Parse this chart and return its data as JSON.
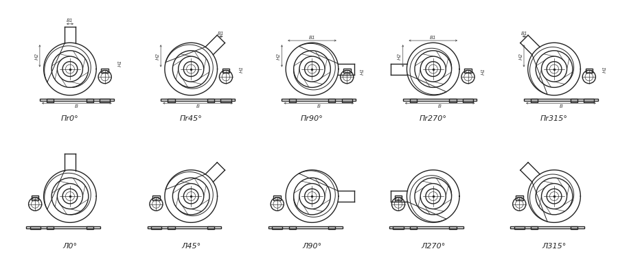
{
  "background_color": "#ffffff",
  "line_color": "#222222",
  "dim_color": "#444444",
  "row1_labels": [
    "Пr0°",
    "Пr45°",
    "Пr90°",
    "Пr270°",
    "Пr315°"
  ],
  "row2_labels": [
    "Л0°",
    "Л45°",
    "Л90°",
    "Л270°",
    "Л315°"
  ],
  "outlet_angles_row1": [
    0,
    45,
    90,
    270,
    315
  ],
  "outlet_angles_row2": [
    0,
    45,
    90,
    270,
    315
  ],
  "motor_right_row1": [
    true,
    true,
    true,
    true,
    true
  ],
  "motor_right_row2": [
    false,
    false,
    false,
    false,
    false
  ]
}
